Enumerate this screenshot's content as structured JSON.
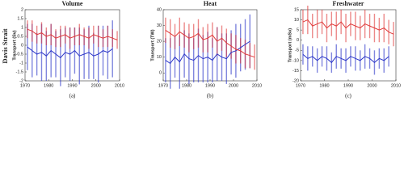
{
  "row_label": "Davis Strait",
  "chart_data": [
    {
      "type": "line",
      "title": "Volume",
      "ylabel": "Transport (Sv)",
      "panel_label": "(a)",
      "xlim": [
        1970,
        2010
      ],
      "xticks": [
        1970,
        1980,
        1990,
        2000,
        2010
      ],
      "ylim": [
        -2,
        2
      ],
      "yticks": [
        -2,
        -1.5,
        -1,
        -0.5,
        0,
        0.5,
        1,
        1.5,
        2
      ],
      "x": [
        1971,
        1973,
        1975,
        1977,
        1979,
        1981,
        1983,
        1985,
        1987,
        1989,
        1991,
        1993,
        1995,
        1997,
        1999,
        2001,
        2003,
        2005,
        2007,
        2009
      ],
      "series": [
        {
          "color": "#2b35c8",
          "values": [
            -0.1,
            -0.3,
            -0.5,
            -0.4,
            -0.6,
            -0.3,
            -0.5,
            -0.7,
            -0.4,
            -0.5,
            -0.3,
            -0.6,
            -0.5,
            -0.4,
            -0.6,
            -0.5,
            -0.3,
            -0.4,
            -0.2,
            null
          ],
          "errors": [
            1.3,
            1.5,
            1.2,
            1.6,
            1.4,
            1.5,
            1.3,
            1.6,
            1.4,
            1.5,
            1.3,
            1.6,
            1.4,
            1.5,
            1.3,
            1.6,
            1.4,
            1.5,
            1.6,
            null
          ]
        },
        {
          "color": "#e03a3a",
          "values": [
            0.9,
            0.8,
            0.6,
            0.7,
            0.5,
            0.6,
            0.4,
            0.5,
            0.6,
            0.4,
            0.5,
            0.6,
            0.5,
            0.4,
            0.6,
            0.5,
            0.4,
            0.5,
            0.4,
            0.3
          ],
          "errors": [
            0.5,
            0.6,
            0.5,
            0.6,
            0.5,
            0.6,
            0.5,
            0.6,
            0.5,
            0.6,
            0.5,
            0.6,
            0.5,
            0.6,
            0.5,
            0.6,
            0.5,
            0.6,
            0.5,
            0.5
          ]
        }
      ]
    },
    {
      "type": "line",
      "title": "Heat",
      "ylabel": "Transport (TW)",
      "panel_label": "(b)",
      "xlim": [
        1970,
        2010
      ],
      "xticks": [
        1970,
        1980,
        1990,
        2000,
        2010
      ],
      "ylim": [
        -5,
        40
      ],
      "yticks": [
        0,
        10,
        20,
        30,
        40
      ],
      "x": [
        1971,
        1973,
        1975,
        1977,
        1979,
        1981,
        1983,
        1985,
        1987,
        1989,
        1991,
        1993,
        1995,
        1997,
        1999,
        2001,
        2003,
        2005,
        2007,
        2009
      ],
      "series": [
        {
          "color": "#2b35c8",
          "values": [
            8,
            6,
            10,
            7,
            12,
            9,
            8,
            11,
            9,
            10,
            8,
            12,
            10,
            9,
            13,
            14,
            16,
            18,
            20,
            null
          ],
          "errors": [
            14,
            16,
            13,
            17,
            15,
            16,
            14,
            17,
            15,
            16,
            14,
            17,
            15,
            16,
            14,
            17,
            15,
            16,
            17,
            null
          ]
        },
        {
          "color": "#e03a3a",
          "values": [
            27,
            25,
            23,
            26,
            24,
            22,
            23,
            25,
            21,
            22,
            24,
            20,
            22,
            19,
            17,
            15,
            14,
            12,
            11,
            10
          ],
          "errors": [
            8,
            9,
            8,
            9,
            8,
            9,
            8,
            9,
            8,
            9,
            8,
            9,
            8,
            9,
            8,
            9,
            8,
            9,
            8,
            8
          ]
        }
      ]
    },
    {
      "type": "line",
      "title": "Freshwater",
      "ylabel": "Transport (mSv)",
      "panel_label": "(c)",
      "xlim": [
        1970,
        2010
      ],
      "xticks": [
        1970,
        1980,
        1990,
        2000,
        2010
      ],
      "ylim": [
        -20,
        15
      ],
      "yticks": [
        -20,
        -15,
        -10,
        -5,
        0,
        5,
        10,
        15
      ],
      "x": [
        1971,
        1973,
        1975,
        1977,
        1979,
        1981,
        1983,
        1985,
        1987,
        1989,
        1991,
        1993,
        1995,
        1997,
        1999,
        2001,
        2003,
        2005,
        2007,
        2009
      ],
      "series": [
        {
          "color": "#2b35c8",
          "values": [
            -7,
            -9,
            -8,
            -10,
            -8,
            -9,
            -11,
            -8,
            -9,
            -10,
            -8,
            -9,
            -10,
            -8,
            -9,
            -11,
            -9,
            -10,
            -8,
            null
          ],
          "errors": [
            5,
            6,
            5,
            6,
            5,
            6,
            5,
            6,
            5,
            6,
            5,
            6,
            5,
            6,
            5,
            6,
            5,
            6,
            5,
            null
          ]
        },
        {
          "color": "#e03a3a",
          "values": [
            9,
            10,
            7,
            8,
            9,
            6,
            8,
            7,
            9,
            6,
            8,
            7,
            6,
            8,
            7,
            6,
            5,
            6,
            4,
            3
          ],
          "errors": [
            6,
            7,
            6,
            7,
            6,
            7,
            6,
            7,
            6,
            7,
            6,
            7,
            6,
            7,
            6,
            7,
            6,
            7,
            6,
            6
          ]
        }
      ]
    }
  ]
}
